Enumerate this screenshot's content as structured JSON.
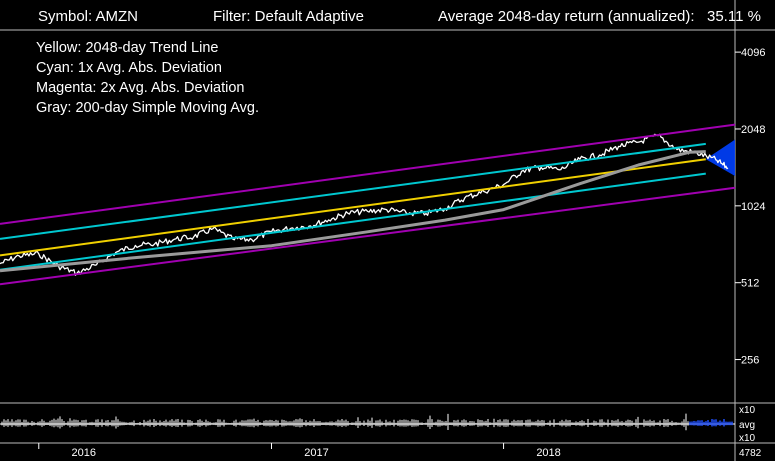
{
  "header": {
    "symbol_label": "Symbol: AMZN",
    "filter_label": "Filter: Default Adaptive",
    "return_label": "Average 2048-day return (annualized):",
    "return_value": "35.11 %"
  },
  "legend": [
    {
      "text": "Yellow: 2048-day Trend Line",
      "color": "#f0d000"
    },
    {
      "text": "Cyan:      1x Avg. Abs. Deviation",
      "color": "#00c8d0"
    },
    {
      "text": "Magenta: 2x Avg. Abs. Deviation",
      "color": "#a000b0"
    },
    {
      "text": "Gray: 200-day Simple Moving Avg.",
      "color": "#9a9a9a"
    }
  ],
  "chart_data": {
    "type": "line",
    "y_scale": "log2",
    "ylim": [
      181,
      5000
    ],
    "x_range": [
      "2015-11-01",
      "2018-12-31"
    ],
    "grid": false,
    "y_ticks": [
      4096,
      2048,
      1024,
      512,
      256
    ],
    "x_ticks": [
      {
        "label": "2016",
        "date": "2016-01-01"
      },
      {
        "label": "2017",
        "date": "2017-01-01"
      },
      {
        "label": "2018",
        "date": "2018-01-01"
      }
    ],
    "series": [
      {
        "color": "#ffffff",
        "x": [
          "2015-11-01",
          "2015-12-01",
          "2016-01-01",
          "2016-02-01",
          "2016-03-01",
          "2016-04-01",
          "2016-05-01",
          "2016-06-01",
          "2016-07-01",
          "2016-08-01",
          "2016-09-01",
          "2016-10-01",
          "2016-11-01",
          "2016-12-01",
          "2017-01-01",
          "2017-02-01",
          "2017-03-01",
          "2017-04-01",
          "2017-05-01",
          "2017-06-01",
          "2017-07-01",
          "2017-08-01",
          "2017-09-01",
          "2017-10-01",
          "2017-11-01",
          "2017-12-01",
          "2018-01-01",
          "2018-02-01",
          "2018-03-01",
          "2018-04-01",
          "2018-05-01",
          "2018-06-01",
          "2018-07-01",
          "2018-08-01",
          "2018-09-01",
          "2018-10-01",
          "2018-11-01",
          "2018-12-01",
          "2018-12-20"
        ],
        "values": [
          608,
          652,
          664,
          594,
          557,
          602,
          672,
          717,
          725,
          757,
          775,
          833,
          759,
          755,
          810,
          838,
          853,
          902,
          958,
          975,
          990,
          960,
          955,
          1000,
          1100,
          1165,
          1240,
          1410,
          1450,
          1420,
          1560,
          1620,
          1750,
          1820,
          1930,
          1700,
          1650,
          1550,
          1440
        ]
      },
      {
        "color": "#f0d000",
        "x": [
          "2015-11-01",
          "2018-11-15"
        ],
        "values": [
          655,
          1560
        ]
      },
      {
        "color": "#00c8d0",
        "x": [
          "2015-11-01",
          "2018-11-15"
        ],
        "values": [
          760,
          1790
        ]
      },
      {
        "color": "#00c8d0",
        "x": [
          "2015-11-01",
          "2018-11-15"
        ],
        "values": [
          575,
          1370
        ]
      },
      {
        "color": "#a000b0",
        "x": [
          "2015-11-01",
          "2018-12-31"
        ],
        "values": [
          870,
          2130
        ]
      },
      {
        "color": "#a000b0",
        "x": [
          "2015-11-01",
          "2018-12-31"
        ],
        "values": [
          505,
          1205
        ]
      },
      {
        "color": "#9a9a9a",
        "x": [
          "2015-11-01",
          "2016-06-01",
          "2017-01-01",
          "2017-06-01",
          "2017-10-01",
          "2018-01-01",
          "2018-05-01",
          "2018-08-01",
          "2018-10-20",
          "2018-11-15"
        ],
        "values": [
          570,
          642,
          715,
          810,
          900,
          990,
          1250,
          1480,
          1660,
          1670
        ]
      }
    ],
    "forecast_band": {
      "color": "#0040ff",
      "x": [
        "2018-11-15",
        "2018-12-31"
      ],
      "upper": [
        1560,
        1860
      ],
      "lower": [
        1560,
        1340
      ]
    },
    "volume_panel": {
      "labels": [
        "x10",
        "avg",
        "x10"
      ],
      "value_label": "4782"
    }
  }
}
